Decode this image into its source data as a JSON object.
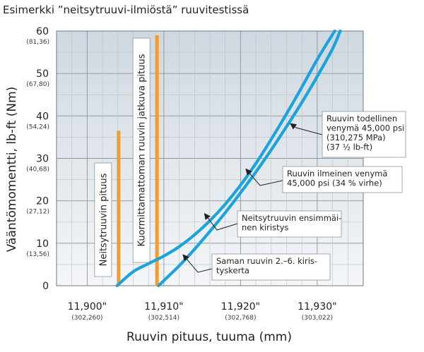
{
  "chart_data": {
    "type": "line",
    "title": "Esimerkki ”neitsytruuvi-ilmiöstä” ruuvitestissä",
    "xlabel": "Ruuvin pituus, tuuma (mm)",
    "ylabel": "Vääntömomentti, lb-ft (Nm)",
    "xlim": [
      11.896,
      11.936
    ],
    "ylim": [
      0,
      60
    ],
    "grid": true,
    "x_ticks": [
      {
        "value": 11.9,
        "label": "11,900\"",
        "sub": "(302,260)"
      },
      {
        "value": 11.91,
        "label": "11,910\"",
        "sub": "(302,514)"
      },
      {
        "value": 11.92,
        "label": "11,920\"",
        "sub": "(302,768)"
      },
      {
        "value": 11.93,
        "label": "11,930\"",
        "sub": "(303,022)"
      }
    ],
    "y_ticks": [
      {
        "value": 0,
        "label": "0",
        "sub": ""
      },
      {
        "value": 10,
        "label": "10",
        "sub": "(13,56)"
      },
      {
        "value": 20,
        "label": "20",
        "sub": "(27,12)"
      },
      {
        "value": 30,
        "label": "30",
        "sub": "(40,68)"
      },
      {
        "value": 40,
        "label": "40",
        "sub": "(54,24)"
      },
      {
        "value": 50,
        "label": "50",
        "sub": "(67,80)"
      },
      {
        "value": 60,
        "label": "60",
        "sub": "(81,36)"
      }
    ],
    "series": [
      {
        "color": "#1aa3dc",
        "x": [
          11.9039,
          11.906,
          11.908,
          11.91,
          11.912,
          11.914,
          11.916,
          11.918,
          11.92,
          11.922,
          11.924,
          11.926,
          11.928,
          11.93,
          11.932,
          11.9323
        ],
        "y": [
          0,
          3.3,
          5.2,
          7.0,
          9.2,
          12.0,
          15.3,
          19.2,
          23.7,
          28.8,
          34.5,
          40.5,
          46.8,
          53.3,
          59.2,
          60
        ]
      },
      {
        "color": "#1aa3dc",
        "x": [
          11.9093,
          11.912,
          11.914,
          11.916,
          11.918,
          11.92,
          11.922,
          11.924,
          11.926,
          11.928,
          11.93,
          11.932,
          11.933
        ],
        "y": [
          0,
          4.7,
          8.6,
          12.8,
          17.2,
          21.9,
          26.8,
          32.0,
          37.5,
          43.2,
          49.3,
          55.8,
          60
        ]
      }
    ],
    "markers": [
      {
        "x": 11.9041,
        "y_top": 36.5,
        "color": "#f39c2d",
        "label": "Neitsytruuvin pituus"
      },
      {
        "x": 11.9091,
        "y_top": 59,
        "color": "#f39c2d",
        "label": "Kuormittamattoman ruuvin jatkuva pituus"
      }
    ],
    "annotations": [
      {
        "lines": [
          "Ruuvin todellinen",
          "venymä 45,000 psi",
          "(310,275 MPa)",
          "(37 ½ lb-ft)"
        ],
        "target": [
          11.9265,
          38.2
        ]
      },
      {
        "lines": [
          "Ruuvin ilmeinen venymä",
          "45,000 psi (34 % virhe)"
        ],
        "target": [
          11.9207,
          27.5
        ]
      },
      {
        "lines": [
          "Neitsytruuvin ensimmäi-",
          "nen kiristys"
        ],
        "target": [
          11.9153,
          17.0
        ]
      },
      {
        "lines": [
          "Saman ruuvin 2.–6. kiris-",
          "tyskerta"
        ],
        "target": [
          11.9125,
          7.3
        ]
      }
    ]
  }
}
